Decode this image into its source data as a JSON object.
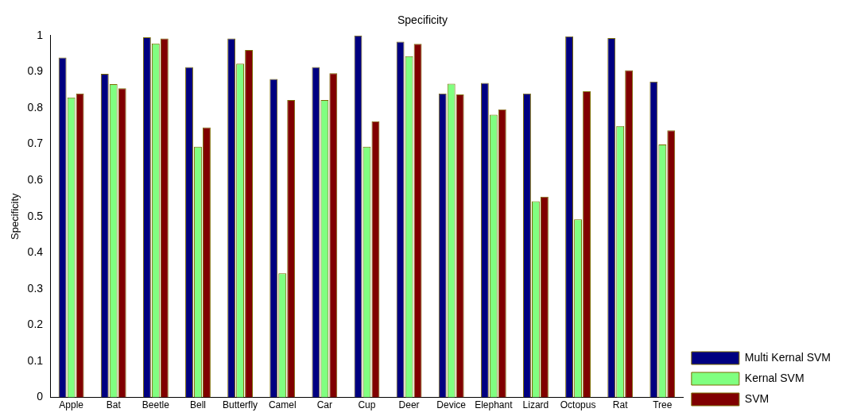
{
  "chart_data": {
    "type": "bar",
    "title": "Specificity",
    "ylabel": "Specificity",
    "categories": [
      "Apple",
      "Bat",
      "Beetle",
      "Bell",
      "Butterfly",
      "Camel",
      "Car",
      "Cup",
      "Deer",
      "Device",
      "Elephant",
      "Lizard",
      "Octopus",
      "Rat",
      "Tree"
    ],
    "series": [
      {
        "name": "Multi Kernal SVM",
        "color": "#000080",
        "values": [
          0.939,
          0.894,
          0.995,
          0.913,
          0.992,
          0.88,
          0.913,
          1.0,
          0.983,
          0.84,
          0.869,
          0.84,
          0.998,
          0.993,
          0.873
        ]
      },
      {
        "name": "Kernal SVM",
        "color": "#80ff80",
        "values": [
          0.829,
          0.866,
          0.978,
          0.693,
          0.922,
          0.343,
          0.822,
          0.693,
          0.943,
          0.867,
          0.781,
          0.542,
          0.492,
          0.75,
          0.699
        ]
      },
      {
        "name": "SVM",
        "color": "#800000",
        "values": [
          0.84,
          0.854,
          0.992,
          0.746,
          0.96,
          0.822,
          0.896,
          0.763,
          0.977,
          0.837,
          0.796,
          0.555,
          0.846,
          0.904,
          0.738
        ]
      }
    ],
    "ylim": [
      0,
      1
    ],
    "yticks": [
      0,
      0.1,
      0.2,
      0.3,
      0.4,
      0.5,
      0.6,
      0.7,
      0.8,
      0.9,
      1
    ],
    "grid": false,
    "legend": "bottom right"
  }
}
